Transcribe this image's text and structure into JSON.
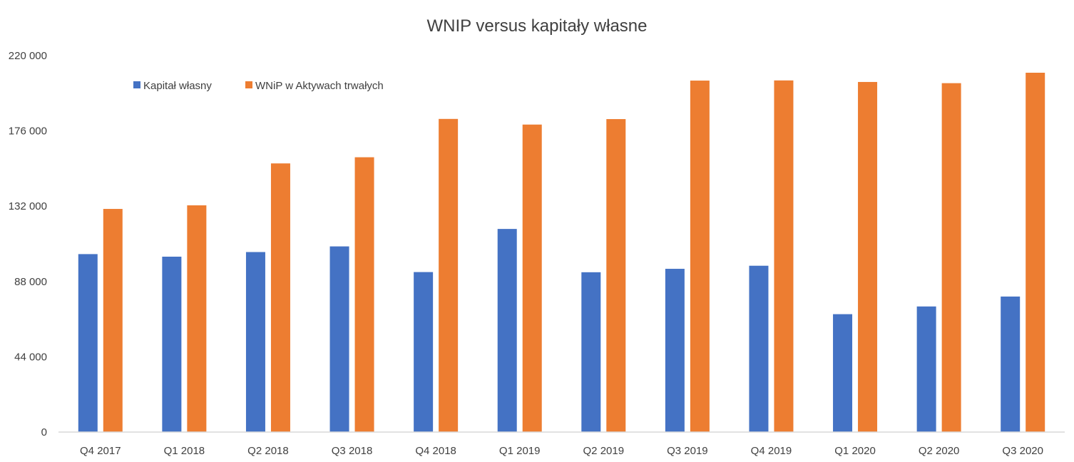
{
  "chart_data": {
    "type": "bar",
    "title": "WNIP versus kapitały własne",
    "xlabel": "",
    "ylabel": "",
    "ylim": [
      0,
      220000
    ],
    "y_ticks": [
      "0",
      "44 000",
      "88 000",
      "132 000",
      "176 000",
      "220 000"
    ],
    "y_tick_values": [
      0,
      44000,
      88000,
      132000,
      176000,
      220000
    ],
    "categories": [
      "Q4 2017",
      "Q1 2018",
      "Q2 2018",
      "Q3 2018",
      "Q4 2018",
      "Q1 2019",
      "Q2 2019",
      "Q3 2019",
      "Q4 2019",
      "Q1 2020",
      "Q2 2020",
      "Q3 2020"
    ],
    "series": [
      {
        "name": "Kapitał własny",
        "color": "#4472C4",
        "values": [
          104000,
          102500,
          105200,
          108500,
          93500,
          118700,
          93400,
          95400,
          97200,
          68900,
          73400,
          79200
        ]
      },
      {
        "name": "WNiP w Aktywach trwałych",
        "color": "#ED7D31",
        "values": [
          130400,
          132500,
          157000,
          160600,
          183000,
          179700,
          182900,
          205400,
          205500,
          204600,
          203900,
          210000
        ]
      }
    ],
    "legend_position": "top-left",
    "grid": false
  }
}
